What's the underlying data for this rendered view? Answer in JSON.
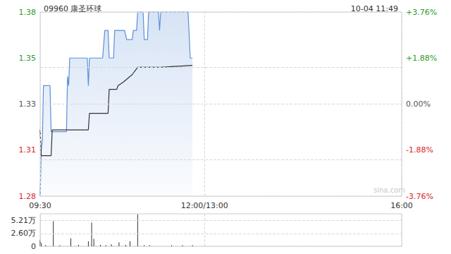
{
  "chart_data": [
    {
      "type": "line",
      "title": "09960 康圣环球",
      "subtitle": "10-04 11:49",
      "watermark": "sina.com",
      "xlim": [
        0,
        330
      ],
      "xticks": [
        {
          "value": 0,
          "label": "09:30"
        },
        {
          "value": 150,
          "label": "12:00/13:00"
        },
        {
          "value": 330,
          "label": "16:00"
        }
      ],
      "ylim": [
        1.28,
        1.38
      ],
      "yticks": [
        1.28,
        {
          "value": 1.305,
          "label": "1.31"
        },
        1.33,
        {
          "value": 1.355,
          "label": "1.35"
        },
        1.38
      ],
      "y2lim": [
        -3.76,
        3.76
      ],
      "y2ticks": [
        {
          "value": -3.76,
          "label": "-3.76%"
        },
        {
          "value": -1.88,
          "label": "-1.88%"
        },
        {
          "value": 0,
          "label": "0.00%"
        },
        {
          "value": 1.88,
          "label": "+1.88%"
        },
        {
          "value": 3.76,
          "label": "+3.76%"
        }
      ],
      "grid": true,
      "series": [
        {
          "color": "#5b8fd8",
          "marker": "none",
          "line_style": "solid",
          "x": [
            0,
            1,
            2,
            3,
            9,
            10,
            24,
            25,
            26,
            27,
            43,
            44,
            45,
            57,
            59,
            62,
            63,
            67,
            68,
            77,
            79,
            84,
            85,
            88,
            89,
            94,
            95,
            98,
            99,
            108,
            109,
            110,
            135,
            137,
            139
          ],
          "values": [
            1.28,
            1.305,
            1.31,
            1.34,
            1.34,
            1.315,
            1.315,
            1.345,
            1.34,
            1.355,
            1.355,
            1.34,
            1.355,
            1.355,
            1.37,
            1.37,
            1.355,
            1.355,
            1.37,
            1.37,
            1.365,
            1.365,
            1.37,
            1.37,
            1.38,
            1.38,
            1.365,
            1.365,
            1.38,
            1.38,
            1.37,
            1.38,
            1.38,
            1.355,
            1.355
          ]
        },
        {
          "color": "#333333",
          "marker": "none",
          "line_style": "solid",
          "x": [
            0,
            1,
            10,
            11,
            44,
            45,
            62,
            63,
            70,
            71,
            76,
            80,
            84,
            89,
            110,
            139
          ],
          "values": [
            1.316,
            1.302,
            1.302,
            1.316,
            1.316,
            1.325,
            1.325,
            1.338,
            1.338,
            1.34,
            1.342,
            1.344,
            1.346,
            1.35,
            1.35,
            1.351
          ]
        }
      ]
    },
    {
      "type": "bar",
      "xlim": [
        0,
        330
      ],
      "xticks": [
        0,
        150,
        330
      ],
      "ylim": [
        0,
        6.6
      ],
      "yticks": [
        0,
        {
          "value": 2.6,
          "label": "2.60万"
        },
        {
          "value": 5.21,
          "label": "5.21万"
        }
      ],
      "tick_labels": "y",
      "grid": true,
      "color": "#333333",
      "x": [
        0,
        1,
        5,
        12,
        18,
        28,
        35,
        44,
        47,
        49,
        55,
        60,
        65,
        72,
        78,
        82,
        89,
        95,
        100,
        120,
        130,
        139
      ],
      "values": [
        1.3,
        0.6,
        0.2,
        5.1,
        0.2,
        1.6,
        0.3,
        1.0,
        4.8,
        1.5,
        0.3,
        0.2,
        0.4,
        0.8,
        0.3,
        1.0,
        6.5,
        0.2,
        0.2,
        0.2,
        0.2,
        0.2
      ]
    }
  ]
}
